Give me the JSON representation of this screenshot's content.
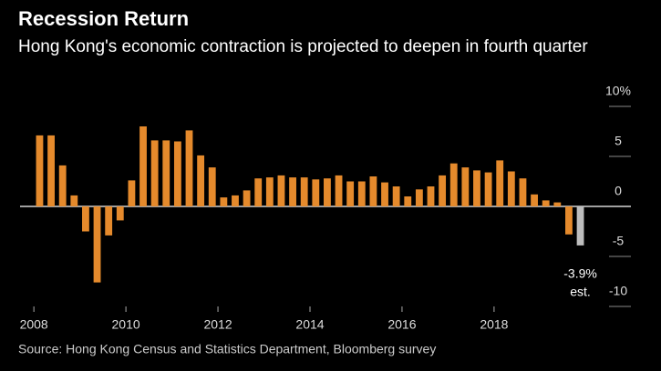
{
  "chart_data": {
    "type": "bar",
    "title": "Recession Return",
    "subtitle": "Hong Kong's economic contraction is projected to deepen in fourth quarter",
    "source": "Source: Hong Kong Census and Statistics Department, Bloomberg survey",
    "x": [
      2008,
      2008.25,
      2008.5,
      2008.75,
      2009,
      2009.25,
      2009.5,
      2009.75,
      2010,
      2010.25,
      2010.5,
      2010.75,
      2011,
      2011.25,
      2011.5,
      2011.75,
      2012,
      2012.25,
      2012.5,
      2012.75,
      2013,
      2013.25,
      2013.5,
      2013.75,
      2014,
      2014.25,
      2014.5,
      2014.75,
      2015,
      2015.25,
      2015.5,
      2015.75,
      2016,
      2016.25,
      2016.5,
      2016.75,
      2017,
      2017.25,
      2017.5,
      2017.75,
      2018,
      2018.25,
      2018.5,
      2018.75,
      2019,
      2019.25,
      2019.5,
      2019.75
    ],
    "values": [
      7.1,
      7.1,
      4.1,
      1.1,
      -2.5,
      -7.6,
      -2.9,
      -1.4,
      2.6,
      8.0,
      6.6,
      6.6,
      6.5,
      7.6,
      5.1,
      3.9,
      0.9,
      1.1,
      1.6,
      2.8,
      2.9,
      3.1,
      2.9,
      2.9,
      2.7,
      2.8,
      3.1,
      2.5,
      2.5,
      3.0,
      2.4,
      2.0,
      1.0,
      1.7,
      2.0,
      3.1,
      4.3,
      3.9,
      3.6,
      3.4,
      4.6,
      3.5,
      2.8,
      1.2,
      0.6,
      0.4,
      -2.8,
      -3.9
    ],
    "value_labels": [
      null,
      null,
      null,
      null,
      null,
      null,
      null,
      null,
      null,
      null,
      null,
      null,
      null,
      null,
      null,
      null,
      null,
      null,
      null,
      null,
      null,
      null,
      null,
      null,
      null,
      null,
      null,
      null,
      null,
      null,
      null,
      null,
      null,
      null,
      null,
      null,
      null,
      null,
      null,
      null,
      null,
      null,
      null,
      null,
      null,
      null,
      null,
      "-3.9%"
    ],
    "annotation": "est.",
    "colors": [
      "#e58a2c",
      "#e58a2c",
      "#e58a2c",
      "#e58a2c",
      "#e58a2c",
      "#e58a2c",
      "#e58a2c",
      "#e58a2c",
      "#e58a2c",
      "#e58a2c",
      "#e58a2c",
      "#e58a2c",
      "#e58a2c",
      "#e58a2c",
      "#e58a2c",
      "#e58a2c",
      "#e58a2c",
      "#e58a2c",
      "#e58a2c",
      "#e58a2c",
      "#e58a2c",
      "#e58a2c",
      "#e58a2c",
      "#e58a2c",
      "#e58a2c",
      "#e58a2c",
      "#e58a2c",
      "#e58a2c",
      "#e58a2c",
      "#e58a2c",
      "#e58a2c",
      "#e58a2c",
      "#e58a2c",
      "#e58a2c",
      "#e58a2c",
      "#e58a2c",
      "#e58a2c",
      "#e58a2c",
      "#e58a2c",
      "#e58a2c",
      "#e58a2c",
      "#e58a2c",
      "#e58a2c",
      "#e58a2c",
      "#e58a2c",
      "#e58a2c",
      "#e58a2c",
      "#bdbdbd"
    ],
    "xlim": [
      2007.7,
      2020.3
    ],
    "xticks": [
      2008,
      2010,
      2012,
      2014,
      2016,
      2018
    ],
    "ylim": [
      -10,
      10
    ],
    "yticks": [
      {
        "value": 10,
        "label": "10%"
      },
      5,
      0,
      -5,
      -10
    ]
  }
}
